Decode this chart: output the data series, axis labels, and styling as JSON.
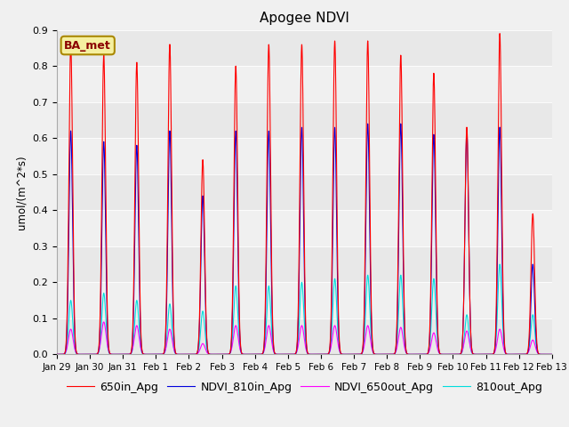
{
  "title": "Apogee NDVI",
  "ylabel": "umol/(m^2*s)",
  "fig_bg_color": "#f0f0f0",
  "plot_bg_color": "#f0f0f0",
  "legend_label": "BA_met",
  "series_labels": [
    "650in_Apg",
    "NDVI_810in_Apg",
    "NDVI_650out_Apg",
    "810out_Apg"
  ],
  "series_colors": [
    "#ff0000",
    "#0000dd",
    "#ff00ff",
    "#00dddd"
  ],
  "ylim": [
    0.0,
    0.9
  ],
  "yticks": [
    0.0,
    0.1,
    0.2,
    0.3,
    0.4,
    0.5,
    0.6,
    0.7,
    0.8,
    0.9
  ],
  "xtick_labels": [
    "Jan 29",
    "Jan 30",
    "Jan 31",
    "Feb 1",
    "Feb 2",
    "Feb 3",
    "Feb 4",
    "Feb 5",
    "Feb 6",
    "Feb 7",
    "Feb 8",
    "Feb 9",
    "Feb 10",
    "Feb 11",
    "Feb 12",
    "Feb 13"
  ],
  "day_peaks_650in": [
    0.86,
    0.83,
    0.81,
    0.86,
    0.54,
    0.8,
    0.86,
    0.86,
    0.87,
    0.87,
    0.83,
    0.78,
    0.63,
    0.89,
    0.39
  ],
  "day_peaks_810in": [
    0.62,
    0.59,
    0.58,
    0.62,
    0.44,
    0.62,
    0.62,
    0.63,
    0.63,
    0.64,
    0.64,
    0.61,
    0.62,
    0.63,
    0.25
  ],
  "day_peaks_650out": [
    0.07,
    0.09,
    0.08,
    0.07,
    0.03,
    0.08,
    0.08,
    0.08,
    0.08,
    0.08,
    0.075,
    0.06,
    0.065,
    0.07,
    0.04
  ],
  "day_peaks_810out": [
    0.15,
    0.17,
    0.15,
    0.14,
    0.12,
    0.19,
    0.19,
    0.2,
    0.21,
    0.22,
    0.22,
    0.21,
    0.11,
    0.25,
    0.11
  ],
  "grid_band_colors": [
    "#e8e8e8",
    "#f0f0f0"
  ],
  "points_per_day": 200
}
